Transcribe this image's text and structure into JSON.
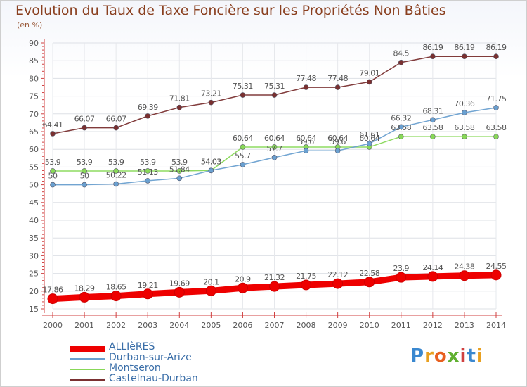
{
  "chart_data": {
    "type": "line",
    "title": "Evolution du Taux de Taxe Foncière sur les Propriétés Non Bâties",
    "unit_label": "(en %)",
    "xlabel": "",
    "ylabel": "(en %)",
    "x": [
      "2000",
      "2001",
      "2002",
      "2003",
      "2004",
      "2005",
      "2006",
      "2007",
      "2008",
      "2009",
      "2010",
      "2011",
      "2012",
      "2013",
      "2014"
    ],
    "y_ticks": [
      15,
      20,
      25,
      30,
      35,
      40,
      45,
      50,
      55,
      60,
      65,
      70,
      75,
      80,
      85,
      90
    ],
    "ylim": [
      15,
      90
    ],
    "series": [
      {
        "name": "ALLIèRES",
        "color": "#ee0000",
        "values": [
          17.86,
          18.29,
          18.65,
          19.21,
          19.69,
          20.1,
          20.9,
          21.32,
          21.75,
          22.12,
          22.58,
          23.9,
          24.14,
          24.38,
          24.55
        ],
        "labels": [
          "17.86",
          "18.29",
          "18.65",
          "19.21",
          "19.69",
          "20.1",
          "20.9",
          "21.32",
          "21.75",
          "22.12",
          "22.58",
          "23.9",
          "24.14",
          "24.38",
          "24.55"
        ]
      },
      {
        "name": "Durban-sur-Arize",
        "color": "#6aa0d0",
        "values": [
          50,
          50,
          50.22,
          51.13,
          51.84,
          54.03,
          55.7,
          57.7,
          59.6,
          59.6,
          61.61,
          66.32,
          68.31,
          70.36,
          71.75
        ],
        "labels": [
          "50",
          "50",
          "50.22",
          "51.13",
          "51.84",
          "54.03",
          "55.7",
          "57.7",
          "59.6",
          "59.6",
          "61.61",
          "66.32",
          "68.31",
          "70.36",
          "71.75"
        ]
      },
      {
        "name": "Montseron",
        "color": "#88d858",
        "values": [
          53.9,
          53.9,
          53.9,
          53.9,
          53.9,
          54.03,
          60.64,
          60.64,
          60.64,
          60.64,
          60.64,
          63.58,
          63.58,
          63.58,
          63.58
        ],
        "labels": [
          "53.9",
          "53.9",
          "53.9",
          "53.9",
          "53.9",
          "54.03",
          "60.64",
          "60.64",
          "60.64",
          "60.64",
          "60.64",
          "63.58",
          "63.58",
          "63.58",
          "63.58"
        ]
      },
      {
        "name": "Castelnau-Durban",
        "color": "#7a3030",
        "values": [
          64.41,
          66.07,
          66.07,
          69.39,
          71.81,
          73.21,
          75.31,
          75.31,
          77.48,
          77.48,
          79.01,
          84.5,
          86.19,
          86.19,
          86.19
        ],
        "labels": [
          "64.41",
          "66.07",
          "66.07",
          "69.39",
          "71.81",
          "73.21",
          "75.31",
          "75.31",
          "77.48",
          "77.48",
          "79.01",
          "84.5",
          "86.19",
          "86.19",
          "86.19"
        ]
      }
    ],
    "legend": [
      "ALLIèRES",
      "Durban-sur-Arize",
      "Montseron",
      "Castelnau-Durban"
    ]
  },
  "logo": {
    "letters": [
      "P",
      "r",
      "o",
      "x",
      "i",
      "t",
      "i"
    ],
    "colors": [
      "#3a88d0",
      "#e8a020",
      "#e86020",
      "#60b030",
      "#d04040",
      "#3a88d0",
      "#e8a020"
    ]
  }
}
